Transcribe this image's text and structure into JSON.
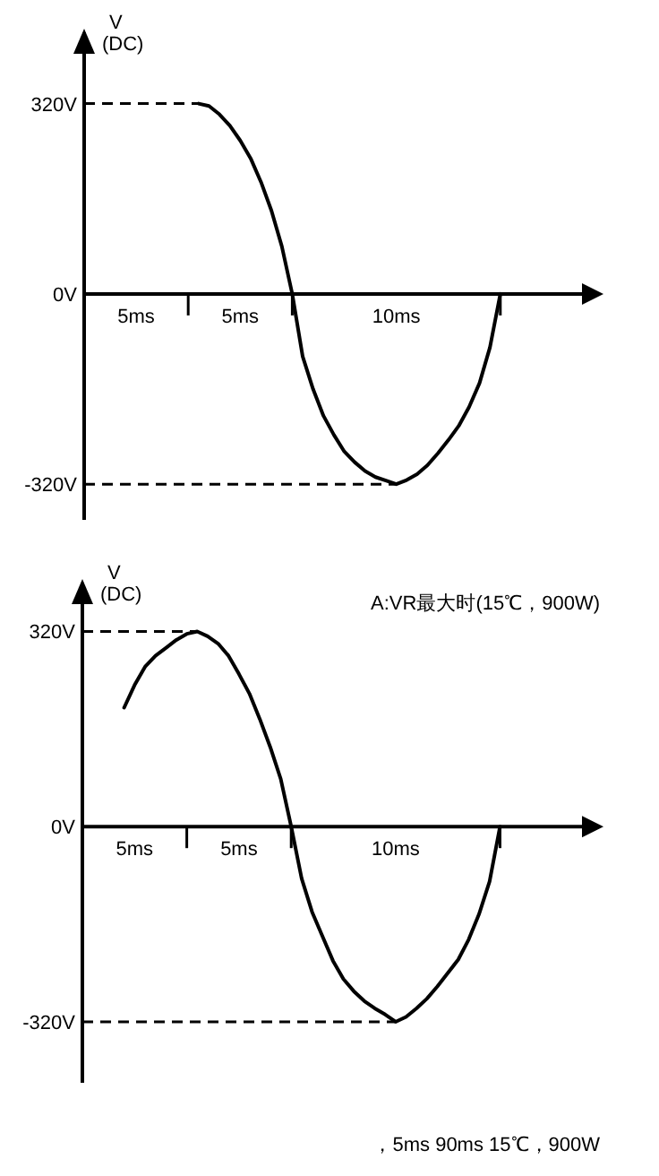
{
  "chart_data": [
    {
      "type": "line",
      "ylabel": "V (DC)",
      "ylim": [
        -380,
        440
      ],
      "categories": [
        null,
        null,
        null,
        null,
        null,
        "5ms",
        null,
        null,
        null,
        null,
        null,
        null,
        null,
        null,
        null,
        "5ms",
        null,
        null,
        null,
        null,
        null,
        null,
        null,
        null,
        null,
        null,
        null,
        null,
        null,
        null,
        "10ms",
        null,
        null,
        null,
        null,
        null,
        null,
        null,
        null,
        null,
        null
      ],
      "yticks": [
        {
          "value": -320,
          "label": "-320V"
        },
        {
          "value": 0,
          "label": "0V"
        },
        {
          "value": 320,
          "label": "320V"
        }
      ],
      "ref_lines": [
        {
          "axis": "y",
          "value": 320,
          "line_style": "dashed",
          "color": "#000000"
        },
        {
          "axis": "y",
          "value": -320,
          "line_style": "dashed",
          "color": "#000000"
        }
      ],
      "series": [
        {
          "color": "#000000",
          "values": [
            null,
            null,
            null,
            null,
            null,
            null,
            null,
            null,
            null,
            null,
            null,
            320,
            316,
            302,
            283,
            258,
            228,
            188,
            140,
            80,
            0,
            -105,
            -160,
            -205,
            -237,
            -265,
            -283,
            -298,
            -308,
            -314,
            -320,
            -313,
            -303,
            -288,
            -268,
            -246,
            -222,
            -190,
            -150,
            -90,
            0
          ]
        }
      ]
    },
    {
      "type": "line",
      "ylabel": "V (DC)",
      "ylim": [
        -420,
        400
      ],
      "categories": [
        null,
        null,
        null,
        null,
        null,
        "5ms",
        null,
        null,
        null,
        null,
        null,
        null,
        null,
        null,
        null,
        "5ms",
        null,
        null,
        null,
        null,
        null,
        null,
        null,
        null,
        null,
        null,
        null,
        null,
        null,
        null,
        "10ms",
        null,
        null,
        null,
        null,
        null,
        null,
        null,
        null,
        null,
        null
      ],
      "yticks": [
        {
          "value": -320,
          "label": "-320V"
        },
        {
          "value": 0,
          "label": "0V"
        },
        {
          "value": 320,
          "label": "320V"
        }
      ],
      "annotations": [
        "A:VR最大时(15℃，900W)",
        "，5ms 90ms 15℃，900W"
      ],
      "ref_lines": [
        {
          "axis": "y",
          "value": 320,
          "line_style": "dashed",
          "color": "#000000"
        },
        {
          "axis": "y",
          "value": -320,
          "line_style": "dashed",
          "color": "#000000"
        }
      ],
      "series": [
        {
          "color": "#000000",
          "values": [
            null,
            null,
            null,
            null,
            195,
            232,
            262,
            280,
            293,
            306,
            316,
            320,
            312,
            300,
            280,
            250,
            218,
            176,
            130,
            78,
            0,
            -85,
            -140,
            -180,
            -220,
            -250,
            -270,
            -286,
            -298,
            -308,
            -320,
            -312,
            -298,
            -282,
            -262,
            -240,
            -218,
            -185,
            -143,
            -90,
            0
          ]
        }
      ]
    }
  ]
}
